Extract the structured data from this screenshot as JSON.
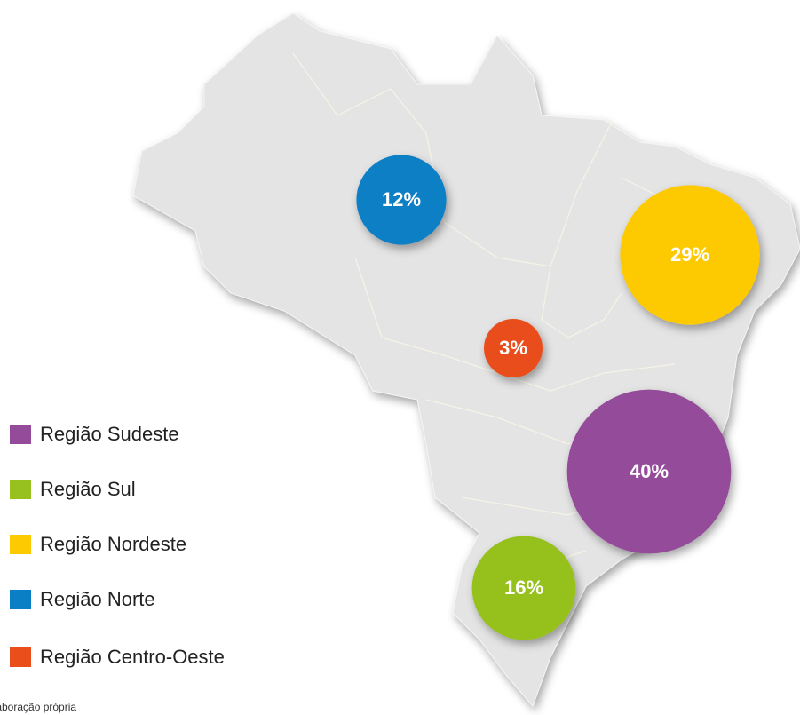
{
  "regions": [
    {
      "name": "Região Sudeste",
      "value": 40,
      "value_label": "40%",
      "color": "#944b9a"
    },
    {
      "name": "Região Sul",
      "value": 16,
      "value_label": "16%",
      "color": "#96c11f"
    },
    {
      "name": "Região Nordeste",
      "value": 29,
      "value_label": "29%",
      "color": "#fdc900"
    },
    {
      "name": "Região Norte",
      "value": 12,
      "value_label": "12%",
      "color": "#0a7fc5"
    },
    {
      "name": "Região Centro-Oeste",
      "value": 3,
      "value_label": "3%",
      "color": "#e94e1b"
    }
  ],
  "source": ": Elaboração própria"
}
